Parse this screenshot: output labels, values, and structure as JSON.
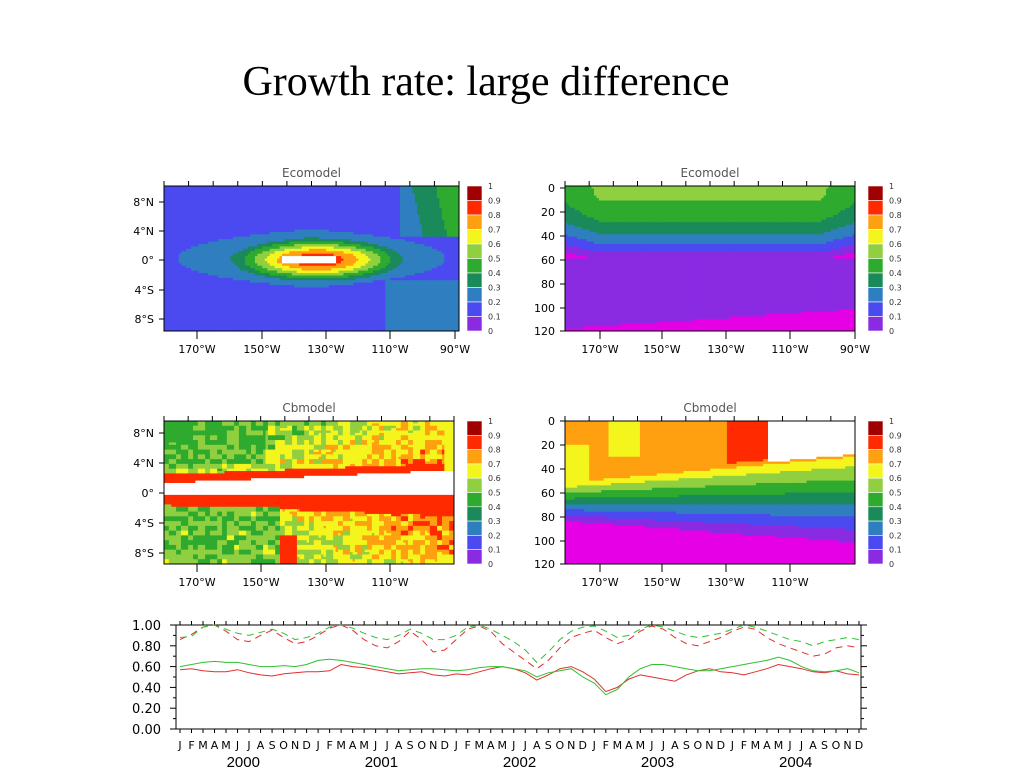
{
  "slide": {
    "title": "Growth rate: large difference"
  },
  "colors": {
    "contour_levels": [
      0,
      0.1,
      0.2,
      0.3,
      0.4,
      0.5,
      0.6,
      0.7,
      0.8,
      0.9,
      1
    ],
    "palette": [
      "#e600e6",
      "#8a2be2",
      "#4a4af0",
      "#2f7fc0",
      "#1a8a5a",
      "#2eaa2e",
      "#90d040",
      "#f5f51e",
      "#ffa010",
      "#ff2a00",
      "#a00000"
    ],
    "ts_series": [
      "#e03030",
      "#30c030"
    ]
  },
  "chart_data": [
    {
      "type": "heatmap",
      "title": "Ecomodel",
      "x_ticks": [
        "170°W",
        "150°W",
        "130°W",
        "110°W",
        "90°W"
      ],
      "y_ticks": [
        "8°N",
        "4°N",
        "0°",
        "4°S",
        "8°S"
      ],
      "colorbar_labels": [
        "1",
        "0.9",
        "0.8",
        "0.7",
        "0.6",
        "0.5",
        "0.4",
        "0.3",
        "0.2",
        "0.1",
        "0"
      ],
      "xlim": [
        180,
        90
      ],
      "ylim": [
        -10,
        10
      ],
      "description_values": {
        "peak": 1.0,
        "peak_location": "0°, 140°W",
        "background": 0.2
      }
    },
    {
      "type": "heatmap",
      "title": "Ecomodel",
      "x_ticks": [
        "170°W",
        "150°W",
        "130°W",
        "110°W",
        "90°W"
      ],
      "y_ticks": [
        "0",
        "20",
        "40",
        "60",
        "80",
        "100",
        "120"
      ],
      "colorbar_labels": [
        "1",
        "0.9",
        "0.8",
        "0.7",
        "0.6",
        "0.5",
        "0.4",
        "0.3",
        "0.2",
        "0.1",
        "0"
      ],
      "xlim": [
        180,
        90
      ],
      "ylim": [
        0,
        120
      ],
      "description_values": {
        "surface_max": 0.6,
        "deep_min": 0.0
      }
    },
    {
      "type": "heatmap",
      "title": "Cbmodel",
      "x_ticks": [
        "170°W",
        "150°W",
        "130°W",
        "110°W"
      ],
      "y_ticks": [
        "8°N",
        "4°N",
        "0°",
        "4°S",
        "8°S"
      ],
      "colorbar_labels": [
        "1",
        "0.9",
        "0.8",
        "0.7",
        "0.6",
        "0.5",
        "0.4",
        "0.3",
        "0.2",
        "0.1",
        "0"
      ],
      "xlim": [
        180,
        90
      ],
      "ylim": [
        -10,
        10
      ]
    },
    {
      "type": "heatmap",
      "title": "Cbmodel",
      "x_ticks": [
        "170°W",
        "150°W",
        "130°W",
        "110°W"
      ],
      "y_ticks": [
        "0",
        "20",
        "40",
        "60",
        "80",
        "100",
        "120"
      ],
      "colorbar_labels": [
        "1",
        "0.9",
        "0.8",
        "0.7",
        "0.6",
        "0.5",
        "0.4",
        "0.3",
        "0.2",
        "0.1",
        "0"
      ],
      "xlim": [
        180,
        90
      ],
      "ylim": [
        0,
        120
      ]
    },
    {
      "type": "line",
      "y_ticks": [
        "1.00",
        "0.80",
        "0.60",
        "0.40",
        "0.20",
        "0.00"
      ],
      "ylim": [
        0,
        1
      ],
      "month_labels": [
        "J",
        "F",
        "M",
        "A",
        "M",
        "J",
        "J",
        "A",
        "S",
        "O",
        "N",
        "D"
      ],
      "years": [
        "2000",
        "2001",
        "2002",
        "2003",
        "2004"
      ],
      "x": "monthly, Jan 2000 - Dec 2004",
      "series": [
        {
          "color": "#e03030",
          "style": "dashed",
          "values": [
            0.86,
            0.91,
            0.98,
            1.0,
            0.94,
            0.86,
            0.84,
            0.9,
            0.95,
            0.88,
            0.82,
            0.84,
            0.9,
            0.97,
            1.0,
            0.95,
            0.86,
            0.8,
            0.78,
            0.84,
            0.94,
            0.86,
            0.74,
            0.76,
            0.86,
            0.96,
            0.99,
            0.94,
            0.82,
            0.74,
            0.66,
            0.58,
            0.66,
            0.78,
            0.88,
            0.92,
            0.95,
            0.88,
            0.82,
            0.86,
            0.94,
            0.99,
            0.96,
            0.88,
            0.82,
            0.8,
            0.84,
            0.88,
            0.94,
            0.98,
            0.96,
            0.88,
            0.82,
            0.78,
            0.74,
            0.7,
            0.72,
            0.78,
            0.8,
            0.78
          ]
        },
        {
          "color": "#30c030",
          "style": "dashed",
          "values": [
            0.88,
            0.89,
            0.98,
            1.0,
            0.96,
            0.92,
            0.9,
            0.93,
            0.96,
            0.92,
            0.86,
            0.88,
            0.92,
            0.98,
            1.0,
            0.97,
            0.92,
            0.88,
            0.86,
            0.9,
            0.96,
            0.92,
            0.86,
            0.86,
            0.9,
            0.98,
            1.0,
            0.96,
            0.9,
            0.84,
            0.76,
            0.64,
            0.74,
            0.86,
            0.94,
            0.98,
            0.99,
            0.94,
            0.88,
            0.9,
            0.96,
            1.0,
            0.98,
            0.94,
            0.9,
            0.88,
            0.9,
            0.92,
            0.96,
            1.0,
            0.98,
            0.94,
            0.9,
            0.86,
            0.84,
            0.8,
            0.84,
            0.86,
            0.88,
            0.86
          ]
        },
        {
          "color": "#e03030",
          "style": "solid",
          "values": [
            0.57,
            0.58,
            0.56,
            0.55,
            0.55,
            0.57,
            0.54,
            0.52,
            0.51,
            0.53,
            0.54,
            0.55,
            0.55,
            0.56,
            0.62,
            0.6,
            0.59,
            0.57,
            0.55,
            0.53,
            0.54,
            0.55,
            0.52,
            0.51,
            0.53,
            0.52,
            0.55,
            0.58,
            0.6,
            0.58,
            0.54,
            0.47,
            0.52,
            0.58,
            0.6,
            0.55,
            0.48,
            0.36,
            0.4,
            0.48,
            0.52,
            0.5,
            0.48,
            0.46,
            0.52,
            0.56,
            0.58,
            0.55,
            0.54,
            0.52,
            0.55,
            0.58,
            0.62,
            0.6,
            0.58,
            0.55,
            0.54,
            0.56,
            0.53,
            0.52
          ]
        },
        {
          "color": "#30c030",
          "style": "solid",
          "values": [
            0.6,
            0.62,
            0.64,
            0.65,
            0.64,
            0.64,
            0.62,
            0.6,
            0.6,
            0.61,
            0.6,
            0.62,
            0.66,
            0.67,
            0.66,
            0.64,
            0.62,
            0.6,
            0.58,
            0.56,
            0.57,
            0.58,
            0.58,
            0.57,
            0.56,
            0.57,
            0.59,
            0.6,
            0.6,
            0.58,
            0.56,
            0.5,
            0.54,
            0.56,
            0.58,
            0.5,
            0.44,
            0.33,
            0.38,
            0.5,
            0.58,
            0.62,
            0.62,
            0.6,
            0.58,
            0.56,
            0.56,
            0.58,
            0.6,
            0.62,
            0.64,
            0.66,
            0.69,
            0.66,
            0.6,
            0.56,
            0.55,
            0.56,
            0.58,
            0.54
          ]
        }
      ]
    }
  ]
}
